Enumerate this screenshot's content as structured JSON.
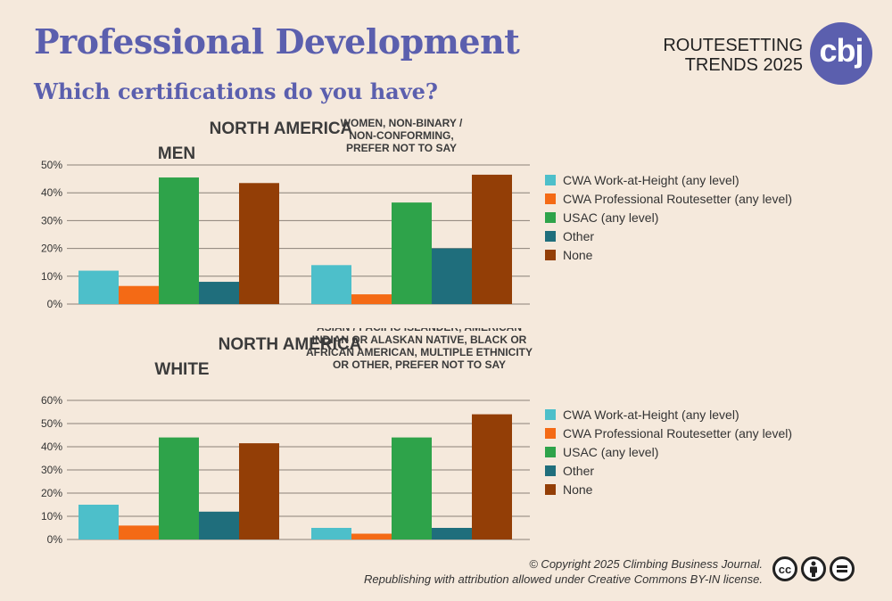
{
  "title": "Professional Development",
  "subtitle": "Which certifications do you have?",
  "brand": {
    "line1": "ROUTESETTING",
    "line2": "TRENDS 2025",
    "logo": "cbj"
  },
  "colors": {
    "background": "#f5e9dc",
    "title": "#5b5fae"
  },
  "legend": [
    {
      "label": "CWA Work-at-Height (any level)",
      "color": "#4dbfca"
    },
    {
      "label": "CWA Professional Routesetter (any level)",
      "color": "#f46a15"
    },
    {
      "label": "USAC (any level)",
      "color": "#2ea34a"
    },
    {
      "label": "Other",
      "color": "#1f6e7c"
    },
    {
      "label": "None",
      "color": "#933e06"
    }
  ],
  "chart_data": [
    {
      "type": "bar",
      "region_label": "NORTH AMERICA",
      "categories": [
        "MEN",
        "WOMEN, NON-BINARY / NON-CONFORMING, PREFER NOT TO SAY"
      ],
      "series": [
        {
          "name": "CWA Work-at-Height (any level)",
          "values": [
            12,
            14
          ]
        },
        {
          "name": "CWA Professional Routesetter (any level)",
          "values": [
            6.5,
            3.5
          ]
        },
        {
          "name": "USAC (any level)",
          "values": [
            45.5,
            36.5
          ]
        },
        {
          "name": "Other",
          "values": [
            8,
            20
          ]
        },
        {
          "name": "None",
          "values": [
            43.5,
            46.5
          ]
        }
      ],
      "ylim": [
        0,
        50
      ],
      "yticks": [
        "0%",
        "10%",
        "20%",
        "30%",
        "40%",
        "50%"
      ],
      "grid": true
    },
    {
      "type": "bar",
      "region_label": "NORTH AMERICA",
      "categories": [
        "WHITE",
        "ASIAN / PACIFIC ISLANDER, AMERICAN INDIAN OR ALASKAN NATIVE, BLACK OR AFRICAN AMERICAN, MULTIPLE ETHNICITY OR OTHER, PREFER NOT TO SAY"
      ],
      "series": [
        {
          "name": "CWA Work-at-Height (any level)",
          "values": [
            15,
            5
          ]
        },
        {
          "name": "CWA Professional Routesetter (any level)",
          "values": [
            6,
            2.5
          ]
        },
        {
          "name": "USAC (any level)",
          "values": [
            44,
            44
          ]
        },
        {
          "name": "Other",
          "values": [
            12,
            5
          ]
        },
        {
          "name": "None",
          "values": [
            41.5,
            54
          ]
        }
      ],
      "ylim": [
        0,
        60
      ],
      "yticks": [
        "0%",
        "10%",
        "20%",
        "30%",
        "40%",
        "50%",
        "60%"
      ],
      "grid": true
    }
  ],
  "footer": {
    "line1": "© Copyright 2025 Climbing Business Journal.",
    "line2": "Republishing with attribution allowed under Creative Commons BY-IN license."
  },
  "license_icons": [
    "cc-icon",
    "by-icon",
    "nd-icon"
  ]
}
